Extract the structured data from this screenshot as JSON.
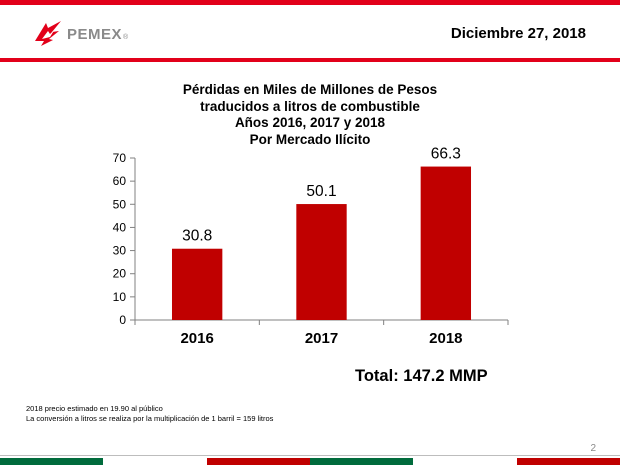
{
  "brand": {
    "name": "PEMEX",
    "registered": "®"
  },
  "header": {
    "date": "Diciembre 27, 2018"
  },
  "colors": {
    "bar": "#c00000",
    "brand_red": "#e2001a",
    "brand_green": "#006b3c",
    "gray": "#8a8a8a"
  },
  "chart_data": {
    "type": "bar",
    "title_lines": [
      "Pérdidas en Miles de Millones de Pesos",
      "traducidos a litros de combustible",
      "Años 2016, 2017 y 2018",
      "Por Mercado Ilícito"
    ],
    "categories": [
      "2016",
      "2017",
      "2018"
    ],
    "values": [
      30.8,
      50.1,
      66.3
    ],
    "value_labels": [
      "30.8",
      "50.1",
      "66.3"
    ],
    "ylim": [
      0,
      70
    ],
    "yticks": [
      0,
      10,
      20,
      30,
      40,
      50,
      60,
      70
    ],
    "grid": false,
    "legend": "none"
  },
  "total": "Total: 147.2 MMP",
  "footnotes": [
    "2018 precio estimado en 19.90 al público",
    "La conversión a litros se realiza por la multiplicación de 1 barril = 159 litros"
  ],
  "page_number": "2"
}
